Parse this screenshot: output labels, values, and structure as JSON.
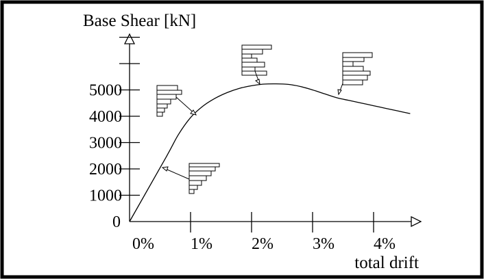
{
  "chart_data": {
    "type": "line",
    "title": "",
    "ylabel": "Base Shear [kN]",
    "xlabel": "total drift",
    "y_ticks": [
      0,
      1000,
      2000,
      3000,
      4000,
      5000
    ],
    "y_tick_labels": [
      "0",
      "1000",
      "2000",
      "3000",
      "4000",
      "5000"
    ],
    "x_ticks": [
      0,
      1,
      2,
      3,
      4
    ],
    "x_tick_labels": [
      "0%",
      "1%",
      "2%",
      "3%",
      "4%"
    ],
    "xlim": [
      0,
      4.8
    ],
    "ylim": [
      0,
      8000
    ],
    "grid": false,
    "series": [
      {
        "x": [
          0,
          0.6,
          0.8,
          1.0,
          1.2,
          1.4,
          1.6,
          1.8,
          2.0,
          2.2,
          2.4,
          2.6,
          2.8,
          3.0,
          3.2,
          3.4,
          3.6,
          3.8,
          4.0,
          4.2,
          4.4,
          4.6
        ],
        "values": [
          0,
          2450,
          3300,
          3950,
          4380,
          4680,
          4900,
          5060,
          5160,
          5220,
          5230,
          5210,
          5130,
          5000,
          4850,
          4700,
          4600,
          4500,
          4400,
          4300,
          4200,
          4100
        ]
      }
    ]
  },
  "colors": {
    "frame": "#000000",
    "line": "#000000",
    "background": "#ffffff"
  }
}
